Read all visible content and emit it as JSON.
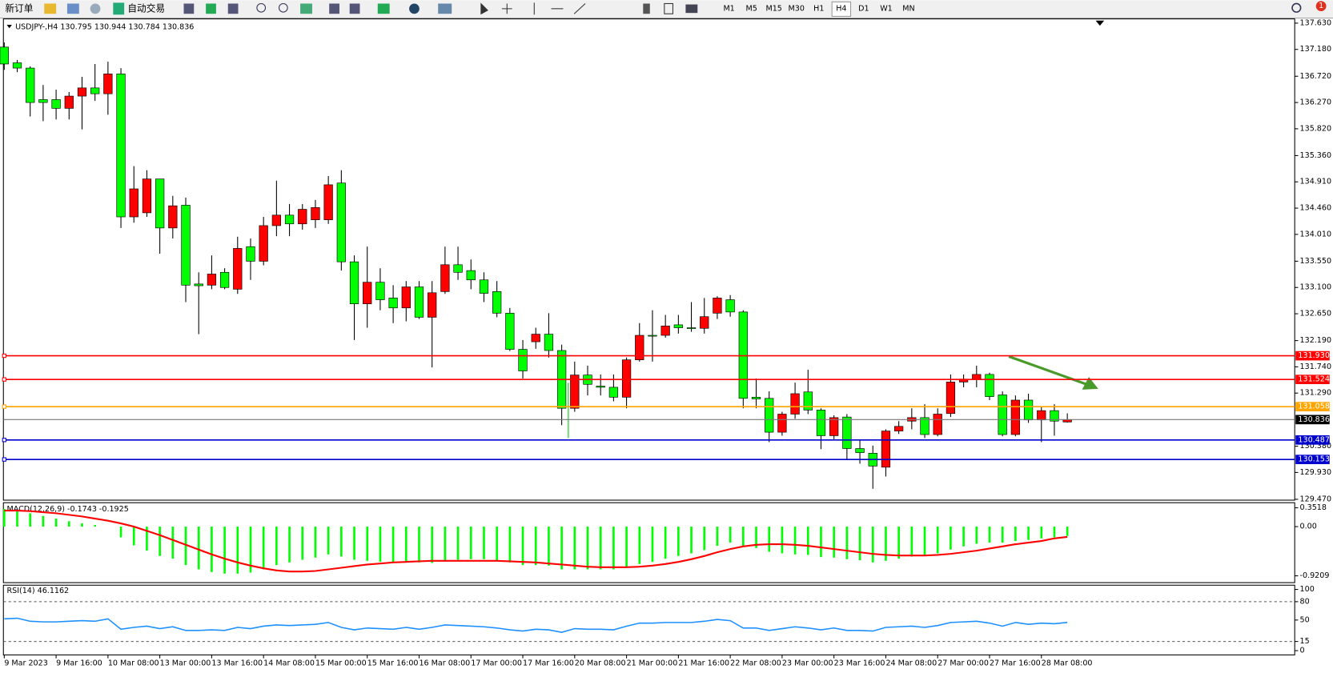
{
  "toolbar": {
    "new_order": "新订单",
    "auto_trading": "自动交易",
    "timeframes": [
      "M1",
      "M5",
      "M15",
      "M30",
      "H1",
      "H4",
      "D1",
      "W1",
      "MN"
    ],
    "notifications": 1
  },
  "chart_data": [
    {
      "type": "candlestick",
      "title": "USDJPY-,H4 130.795 130.944 130.784 130.836",
      "categories": [
        "9 Mar 2023",
        null,
        null,
        null,
        "9 Mar 16:00",
        null,
        null,
        null,
        "10 Mar 08:00",
        null,
        null,
        null,
        "13 Mar 00:00",
        null,
        null,
        null,
        "13 Mar 16:00",
        null,
        null,
        null,
        "14 Mar 08:00",
        null,
        null,
        null,
        "15 Mar 00:00",
        null,
        null,
        null,
        "15 Mar 16:00",
        null,
        null,
        null,
        "16 Mar 08:00",
        null,
        null,
        null,
        "17 Mar 00:00",
        null,
        null,
        null,
        "17 Mar 16:00",
        null,
        null,
        null,
        "20 Mar 08:00",
        null,
        null,
        null,
        "21 Mar 00:00",
        null,
        null,
        null,
        "21 Mar 16:00",
        null,
        null,
        null,
        "22 Mar 08:00",
        null,
        null,
        null,
        "23 Mar 00:00",
        null,
        null,
        null,
        "23 Mar 16:00",
        null,
        null,
        null,
        "24 Mar 08:00",
        null,
        null,
        null,
        "27 Mar 00:00",
        null,
        null,
        null,
        "27 Mar 16:00",
        null,
        null,
        null,
        "28 Mar 08:00",
        null,
        null
      ],
      "open": [
        137.22,
        136.95,
        136.86,
        136.32,
        136.32,
        136.17,
        136.38,
        136.52,
        136.42,
        136.76,
        134.31,
        134.38,
        134.96,
        134.12,
        134.51,
        133.16,
        133.14,
        133.36,
        133.07,
        133.8,
        133.55,
        134.16,
        134.34,
        134.19,
        134.26,
        134.26,
        134.89,
        133.54,
        132.82,
        133.19,
        132.92,
        132.75,
        133.11,
        132.59,
        133.03,
        133.49,
        133.39,
        133.23,
        133.03,
        132.66,
        132.04,
        132.17,
        132.3,
        132.02,
        131.03,
        131.6,
        131.41,
        131.39,
        131.22,
        131.86,
        132.28,
        132.28,
        132.46,
        132.41,
        132.4,
        132.66,
        132.89,
        132.68,
        131.22,
        131.2,
        130.62,
        130.93,
        131.31,
        131.0,
        130.56,
        130.88,
        130.34,
        130.26,
        130.02,
        130.64,
        130.81,
        130.87,
        130.58,
        130.94,
        131.48,
        131.53,
        131.61,
        131.26,
        130.58,
        131.17,
        130.83,
        130.99,
        130.795
      ],
      "high": [
        137.3,
        137.0,
        136.89,
        136.57,
        136.49,
        136.45,
        136.71,
        136.93,
        136.97,
        136.86,
        135.18,
        135.11,
        134.96,
        134.67,
        134.64,
        133.36,
        133.65,
        133.43,
        133.97,
        133.94,
        134.31,
        134.93,
        134.53,
        134.53,
        134.6,
        135.01,
        135.11,
        133.65,
        133.8,
        133.43,
        133.14,
        133.21,
        133.21,
        133.21,
        133.8,
        133.8,
        133.58,
        133.36,
        133.21,
        132.75,
        132.2,
        132.41,
        132.66,
        132.12,
        131.83,
        131.76,
        131.61,
        131.61,
        131.9,
        132.49,
        132.71,
        132.63,
        132.63,
        132.85,
        132.92,
        132.95,
        132.97,
        132.71,
        131.54,
        131.32,
        130.97,
        131.47,
        131.69,
        131.03,
        130.91,
        130.93,
        130.48,
        130.39,
        130.67,
        130.81,
        131.03,
        131.1,
        131.03,
        131.61,
        131.61,
        131.76,
        131.64,
        131.32,
        131.25,
        131.28,
        131.06,
        131.1,
        130.944
      ],
      "low": [
        136.83,
        136.79,
        136.03,
        135.95,
        135.98,
        135.98,
        135.81,
        136.3,
        136.06,
        134.12,
        134.21,
        134.31,
        133.68,
        133.94,
        132.85,
        132.3,
        133.07,
        133.07,
        132.99,
        133.23,
        133.48,
        133.98,
        133.98,
        134.09,
        134.12,
        134.19,
        133.39,
        132.2,
        132.41,
        132.71,
        132.49,
        132.52,
        132.56,
        131.73,
        132.99,
        133.23,
        133.07,
        132.85,
        132.59,
        132.01,
        131.54,
        132.05,
        131.9,
        130.74,
        130.97,
        131.25,
        131.25,
        131.15,
        131.03,
        131.83,
        131.83,
        132.24,
        132.31,
        132.34,
        132.31,
        132.56,
        132.6,
        131.03,
        131.03,
        130.45,
        130.56,
        130.85,
        130.93,
        130.33,
        130.5,
        130.16,
        130.08,
        129.65,
        129.86,
        130.59,
        130.67,
        130.52,
        130.55,
        130.88,
        131.39,
        131.39,
        131.17,
        130.55,
        130.55,
        130.78,
        130.45,
        130.56,
        130.784
      ],
      "close": [
        136.93,
        136.86,
        136.27,
        136.27,
        136.17,
        136.38,
        136.52,
        136.42,
        136.76,
        134.31,
        134.79,
        134.96,
        134.12,
        134.5,
        133.14,
        133.13,
        133.33,
        133.1,
        133.77,
        133.55,
        134.16,
        134.34,
        134.19,
        134.44,
        134.47,
        134.86,
        133.54,
        132.82,
        133.19,
        132.89,
        132.75,
        133.11,
        132.59,
        133.01,
        133.49,
        133.36,
        133.23,
        133.0,
        132.66,
        132.04,
        131.67,
        132.3,
        132.02,
        131.03,
        131.6,
        131.44,
        131.39,
        131.22,
        131.86,
        132.28,
        132.27,
        132.44,
        132.41,
        132.4,
        132.6,
        132.92,
        132.68,
        131.2,
        131.19,
        130.62,
        130.93,
        131.28,
        131.0,
        130.56,
        130.87,
        130.34,
        130.27,
        130.04,
        130.64,
        130.72,
        130.87,
        130.58,
        130.93,
        131.48,
        131.53,
        131.61,
        131.23,
        130.58,
        131.17,
        130.83,
        130.99,
        130.81,
        130.836
      ],
      "up_color": "#ff0000",
      "down_color": "#00ff00",
      "current_price_line": true,
      "ylim": [
        129.47,
        137.63
      ],
      "yticks": [
        {
          "value": 137.63,
          "label": "137.630"
        },
        {
          "value": 137.18,
          "label": "137.180"
        },
        {
          "value": 136.72,
          "label": "136.720"
        },
        {
          "value": 136.27,
          "label": "136.270"
        },
        {
          "value": 135.82,
          "label": "135.820"
        },
        {
          "value": 135.36,
          "label": "135.360"
        },
        {
          "value": 134.91,
          "label": "134.910"
        },
        {
          "value": 134.46,
          "label": "134.460"
        },
        {
          "value": 134.01,
          "label": "134.010"
        },
        {
          "value": 133.55,
          "label": "133.550"
        },
        {
          "value": 133.1,
          "label": "133.100"
        },
        {
          "value": 132.65,
          "label": "132.650"
        },
        {
          "value": 132.19,
          "label": "132.190"
        },
        {
          "value": 131.74,
          "label": "131.740"
        },
        {
          "value": 131.29,
          "label": "131.290"
        },
        {
          "value": 130.38,
          "label": "130.380"
        },
        {
          "value": 129.93,
          "label": "129.930"
        },
        {
          "value": 129.47,
          "label": "129.470"
        }
      ],
      "hlines": [
        {
          "value": 131.93,
          "label": "131.930",
          "color": "#ff0000"
        },
        {
          "value": 131.524,
          "color": "#ff0000"
        },
        {
          "value": 131.058,
          "color": "#ffa500"
        },
        {
          "value": 130.487,
          "color": "#0000cd"
        },
        {
          "value": 130.153,
          "color": "#0000cd"
        }
      ]
    },
    {
      "type": "macd",
      "title": "MACD(12,26,9) -0.1743 -0.1925",
      "series": [
        {
          "kind": "histogram",
          "color": "#00ff00",
          "values": [
            0.33,
            0.3,
            0.25,
            0.2,
            0.15,
            0.1,
            0.06,
            0.03,
            0.0,
            -0.2,
            -0.35,
            -0.45,
            -0.55,
            -0.6,
            -0.72,
            -0.8,
            -0.85,
            -0.88,
            -0.88,
            -0.86,
            -0.8,
            -0.72,
            -0.67,
            -0.62,
            -0.58,
            -0.52,
            -0.56,
            -0.62,
            -0.64,
            -0.66,
            -0.67,
            -0.66,
            -0.67,
            -0.68,
            -0.64,
            -0.62,
            -0.61,
            -0.61,
            -0.63,
            -0.67,
            -0.72,
            -0.72,
            -0.73,
            -0.8,
            -0.8,
            -0.8,
            -0.8,
            -0.8,
            -0.76,
            -0.7,
            -0.66,
            -0.6,
            -0.55,
            -0.5,
            -0.44,
            -0.36,
            -0.3,
            -0.36,
            -0.4,
            -0.47,
            -0.5,
            -0.52,
            -0.53,
            -0.57,
            -0.58,
            -0.61,
            -0.63,
            -0.67,
            -0.64,
            -0.6,
            -0.56,
            -0.54,
            -0.5,
            -0.43,
            -0.37,
            -0.32,
            -0.3,
            -0.3,
            -0.27,
            -0.25,
            -0.22,
            -0.2,
            -0.1743
          ]
        },
        {
          "kind": "line",
          "color": "#ff0000",
          "values": [
            0.3,
            0.3,
            0.29,
            0.27,
            0.25,
            0.22,
            0.19,
            0.15,
            0.11,
            0.06,
            0.0,
            -0.08,
            -0.16,
            -0.25,
            -0.34,
            -0.43,
            -0.52,
            -0.6,
            -0.67,
            -0.73,
            -0.78,
            -0.82,
            -0.84,
            -0.84,
            -0.83,
            -0.8,
            -0.77,
            -0.74,
            -0.71,
            -0.69,
            -0.67,
            -0.66,
            -0.65,
            -0.64,
            -0.64,
            -0.64,
            -0.64,
            -0.64,
            -0.64,
            -0.65,
            -0.66,
            -0.67,
            -0.69,
            -0.71,
            -0.73,
            -0.75,
            -0.76,
            -0.76,
            -0.76,
            -0.75,
            -0.73,
            -0.7,
            -0.66,
            -0.61,
            -0.55,
            -0.48,
            -0.42,
            -0.37,
            -0.34,
            -0.33,
            -0.33,
            -0.34,
            -0.36,
            -0.39,
            -0.42,
            -0.45,
            -0.48,
            -0.51,
            -0.53,
            -0.54,
            -0.54,
            -0.54,
            -0.53,
            -0.51,
            -0.48,
            -0.45,
            -0.41,
            -0.37,
            -0.33,
            -0.3,
            -0.27,
            -0.22,
            -0.1925
          ]
        }
      ],
      "ylim": [
        -0.9209,
        0.3518
      ],
      "yticks": [
        0.3518,
        {
          "value": 0,
          "label": "0.00"
        },
        -0.9209
      ]
    },
    {
      "type": "line",
      "title": "RSI(14) 46.1162",
      "color": "#1e90ff",
      "values": [
        52,
        53,
        48,
        47,
        47,
        48,
        49,
        48,
        52,
        35,
        38,
        40,
        36,
        39,
        33,
        33,
        34,
        33,
        38,
        36,
        40,
        42,
        41,
        42,
        43,
        46,
        38,
        34,
        37,
        36,
        35,
        38,
        35,
        38,
        42,
        41,
        40,
        39,
        37,
        34,
        32,
        35,
        34,
        30,
        36,
        35,
        35,
        34,
        40,
        45,
        45,
        46,
        46,
        46,
        48,
        51,
        49,
        37,
        37,
        33,
        36,
        39,
        37,
        34,
        37,
        33,
        33,
        32,
        38,
        39,
        40,
        38,
        41,
        46,
        47,
        48,
        45,
        40,
        46,
        43,
        45,
        44,
        46.1162
      ],
      "ylim": [
        0,
        100
      ],
      "yticks": [
        100,
        80,
        50,
        15,
        0
      ],
      "levels": [
        80,
        15
      ]
    }
  ]
}
